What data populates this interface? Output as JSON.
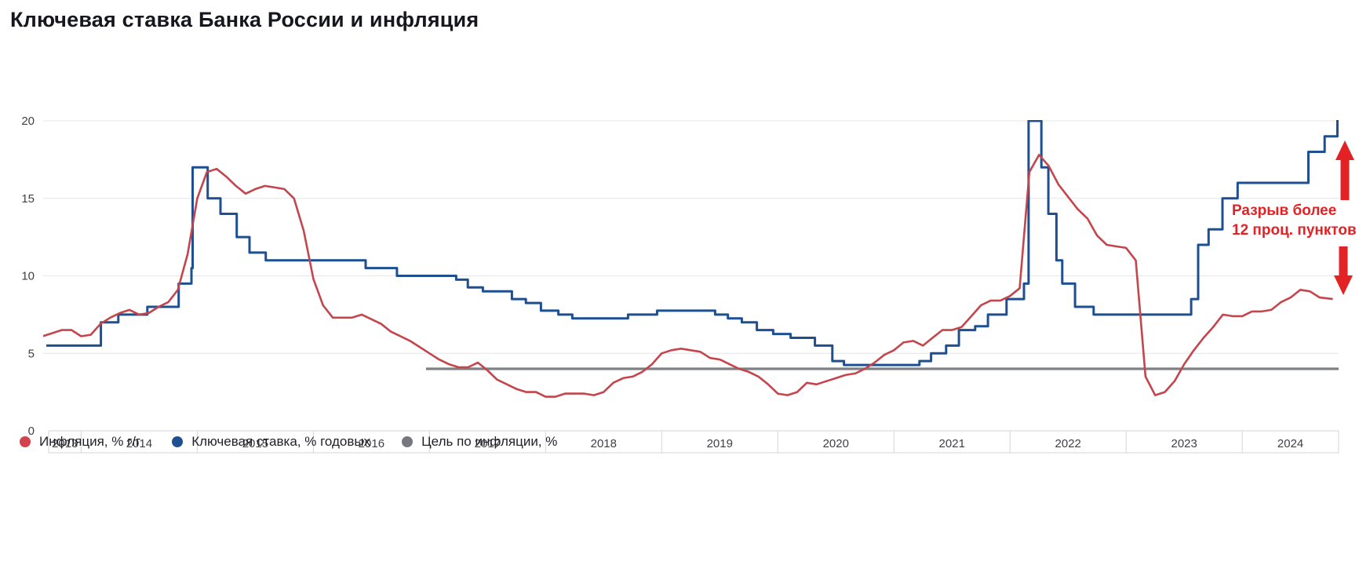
{
  "title": "Ключевая ставка Банка России и инфляция",
  "colors": {
    "inflation_line": "#c4454c",
    "key_rate_line": "#1d4f91",
    "target_line": "#7d8085",
    "annotation_red": "#e32226",
    "grid_line": "#e6e6ea",
    "axis_text": "#3f3f46",
    "title_text": "#16161e",
    "cell_border": "#d6d6da"
  },
  "annotation": {
    "line1": "Разрыв более",
    "line2": "12 проц. пунктов",
    "arrow_up": "arrow-up",
    "arrow_down": "arrow-down"
  },
  "legend": [
    {
      "label": "Инфляция, % г/г",
      "color": "#d2434b"
    },
    {
      "label": "Ключевая ставка, % годовых",
      "color": "#1d4f91"
    },
    {
      "label": "Цель по инфляции, %",
      "color": "#75787e"
    }
  ],
  "chart_data": {
    "type": "line",
    "title": "Ключевая ставка Банка России и инфляция",
    "x_axis": {
      "unit": "year",
      "range": [
        2013.72,
        2024.83
      ],
      "labels": [
        "2013",
        "2014",
        "2015",
        "2016",
        "2017",
        "2018",
        "2019",
        "2020",
        "2021",
        "2022",
        "2023",
        "2024"
      ]
    },
    "y_axis": {
      "ticks": [
        0,
        5,
        10,
        15,
        20
      ],
      "range": [
        0,
        20
      ],
      "grid": true
    },
    "series": [
      {
        "name": "Инфляция, % г/г",
        "type": "line",
        "color": "#c4454c",
        "points": [
          [
            2013.667,
            6.1
          ],
          [
            2013.75,
            6.3
          ],
          [
            2013.833,
            6.5
          ],
          [
            2013.917,
            6.5
          ],
          [
            2014.0,
            6.1
          ],
          [
            2014.083,
            6.2
          ],
          [
            2014.167,
            6.9
          ],
          [
            2014.25,
            7.3
          ],
          [
            2014.333,
            7.6
          ],
          [
            2014.417,
            7.8
          ],
          [
            2014.5,
            7.5
          ],
          [
            2014.583,
            7.6
          ],
          [
            2014.667,
            8.0
          ],
          [
            2014.75,
            8.3
          ],
          [
            2014.833,
            9.1
          ],
          [
            2014.917,
            11.4
          ],
          [
            2015.0,
            15.0
          ],
          [
            2015.083,
            16.7
          ],
          [
            2015.167,
            16.9
          ],
          [
            2015.25,
            16.4
          ],
          [
            2015.333,
            15.8
          ],
          [
            2015.417,
            15.3
          ],
          [
            2015.5,
            15.6
          ],
          [
            2015.583,
            15.8
          ],
          [
            2015.667,
            15.7
          ],
          [
            2015.75,
            15.6
          ],
          [
            2015.833,
            15.0
          ],
          [
            2015.917,
            12.9
          ],
          [
            2016.0,
            9.8
          ],
          [
            2016.083,
            8.1
          ],
          [
            2016.167,
            7.3
          ],
          [
            2016.25,
            7.3
          ],
          [
            2016.333,
            7.3
          ],
          [
            2016.417,
            7.5
          ],
          [
            2016.5,
            7.2
          ],
          [
            2016.583,
            6.9
          ],
          [
            2016.667,
            6.4
          ],
          [
            2016.75,
            6.1
          ],
          [
            2016.833,
            5.8
          ],
          [
            2016.917,
            5.4
          ],
          [
            2017.0,
            5.0
          ],
          [
            2017.083,
            4.6
          ],
          [
            2017.167,
            4.3
          ],
          [
            2017.25,
            4.1
          ],
          [
            2017.333,
            4.1
          ],
          [
            2017.417,
            4.4
          ],
          [
            2017.5,
            3.9
          ],
          [
            2017.583,
            3.3
          ],
          [
            2017.667,
            3.0
          ],
          [
            2017.75,
            2.7
          ],
          [
            2017.833,
            2.5
          ],
          [
            2017.917,
            2.5
          ],
          [
            2018.0,
            2.2
          ],
          [
            2018.083,
            2.2
          ],
          [
            2018.167,
            2.4
          ],
          [
            2018.25,
            2.4
          ],
          [
            2018.333,
            2.4
          ],
          [
            2018.417,
            2.3
          ],
          [
            2018.5,
            2.5
          ],
          [
            2018.583,
            3.1
          ],
          [
            2018.667,
            3.4
          ],
          [
            2018.75,
            3.5
          ],
          [
            2018.833,
            3.8
          ],
          [
            2018.917,
            4.3
          ],
          [
            2019.0,
            5.0
          ],
          [
            2019.083,
            5.2
          ],
          [
            2019.167,
            5.3
          ],
          [
            2019.25,
            5.2
          ],
          [
            2019.333,
            5.1
          ],
          [
            2019.417,
            4.7
          ],
          [
            2019.5,
            4.6
          ],
          [
            2019.583,
            4.3
          ],
          [
            2019.667,
            4.0
          ],
          [
            2019.75,
            3.8
          ],
          [
            2019.833,
            3.5
          ],
          [
            2019.917,
            3.0
          ],
          [
            2020.0,
            2.4
          ],
          [
            2020.083,
            2.3
          ],
          [
            2020.167,
            2.5
          ],
          [
            2020.25,
            3.1
          ],
          [
            2020.333,
            3.0
          ],
          [
            2020.417,
            3.2
          ],
          [
            2020.5,
            3.4
          ],
          [
            2020.583,
            3.6
          ],
          [
            2020.667,
            3.7
          ],
          [
            2020.75,
            4.0
          ],
          [
            2020.833,
            4.4
          ],
          [
            2020.917,
            4.9
          ],
          [
            2021.0,
            5.2
          ],
          [
            2021.083,
            5.7
          ],
          [
            2021.167,
            5.8
          ],
          [
            2021.25,
            5.5
          ],
          [
            2021.333,
            6.0
          ],
          [
            2021.417,
            6.5
          ],
          [
            2021.5,
            6.5
          ],
          [
            2021.583,
            6.7
          ],
          [
            2021.667,
            7.4
          ],
          [
            2021.75,
            8.1
          ],
          [
            2021.833,
            8.4
          ],
          [
            2021.917,
            8.4
          ],
          [
            2022.0,
            8.7
          ],
          [
            2022.083,
            9.2
          ],
          [
            2022.167,
            16.7
          ],
          [
            2022.25,
            17.8
          ],
          [
            2022.333,
            17.1
          ],
          [
            2022.417,
            15.9
          ],
          [
            2022.5,
            15.1
          ],
          [
            2022.583,
            14.3
          ],
          [
            2022.667,
            13.7
          ],
          [
            2022.75,
            12.6
          ],
          [
            2022.833,
            12.0
          ],
          [
            2022.917,
            11.9
          ],
          [
            2023.0,
            11.8
          ],
          [
            2023.083,
            11.0
          ],
          [
            2023.167,
            3.5
          ],
          [
            2023.25,
            2.3
          ],
          [
            2023.333,
            2.5
          ],
          [
            2023.417,
            3.2
          ],
          [
            2023.5,
            4.3
          ],
          [
            2023.583,
            5.2
          ],
          [
            2023.667,
            6.0
          ],
          [
            2023.75,
            6.7
          ],
          [
            2023.833,
            7.5
          ],
          [
            2023.917,
            7.4
          ],
          [
            2024.0,
            7.4
          ],
          [
            2024.083,
            7.7
          ],
          [
            2024.167,
            7.7
          ],
          [
            2024.25,
            7.8
          ],
          [
            2024.333,
            8.3
          ],
          [
            2024.417,
            8.6
          ],
          [
            2024.5,
            9.1
          ],
          [
            2024.583,
            9.0
          ],
          [
            2024.667,
            8.6
          ],
          [
            2024.78,
            8.5
          ]
        ]
      },
      {
        "name": "Ключевая ставка, % годовых",
        "type": "step",
        "color": "#1d4f91",
        "points": [
          [
            2013.7,
            5.5
          ],
          [
            2014.17,
            7.0
          ],
          [
            2014.32,
            7.5
          ],
          [
            2014.57,
            8.0
          ],
          [
            2014.84,
            9.5
          ],
          [
            2014.95,
            10.5
          ],
          [
            2014.96,
            17.0
          ],
          [
            2015.09,
            15.0
          ],
          [
            2015.2,
            14.0
          ],
          [
            2015.34,
            12.5
          ],
          [
            2015.45,
            11.5
          ],
          [
            2015.59,
            11.0
          ],
          [
            2016.45,
            10.5
          ],
          [
            2016.72,
            10.0
          ],
          [
            2017.23,
            9.75
          ],
          [
            2017.33,
            9.25
          ],
          [
            2017.46,
            9.0
          ],
          [
            2017.71,
            8.5
          ],
          [
            2017.83,
            8.25
          ],
          [
            2017.96,
            7.75
          ],
          [
            2018.11,
            7.5
          ],
          [
            2018.23,
            7.25
          ],
          [
            2018.71,
            7.5
          ],
          [
            2018.96,
            7.75
          ],
          [
            2019.46,
            7.5
          ],
          [
            2019.57,
            7.25
          ],
          [
            2019.69,
            7.0
          ],
          [
            2019.82,
            6.5
          ],
          [
            2019.96,
            6.25
          ],
          [
            2020.11,
            6.0
          ],
          [
            2020.32,
            5.5
          ],
          [
            2020.47,
            4.5
          ],
          [
            2020.57,
            4.25
          ],
          [
            2021.22,
            4.5
          ],
          [
            2021.32,
            5.0
          ],
          [
            2021.45,
            5.5
          ],
          [
            2021.56,
            6.5
          ],
          [
            2021.7,
            6.75
          ],
          [
            2021.81,
            7.5
          ],
          [
            2021.97,
            8.5
          ],
          [
            2022.12,
            9.5
          ],
          [
            2022.16,
            20.0
          ],
          [
            2022.27,
            17.0
          ],
          [
            2022.33,
            14.0
          ],
          [
            2022.4,
            11.0
          ],
          [
            2022.45,
            9.5
          ],
          [
            2022.56,
            8.0
          ],
          [
            2022.72,
            7.5
          ],
          [
            2023.56,
            8.5
          ],
          [
            2023.62,
            12.0
          ],
          [
            2023.71,
            13.0
          ],
          [
            2023.83,
            15.0
          ],
          [
            2023.96,
            16.0
          ],
          [
            2024.57,
            18.0
          ],
          [
            2024.71,
            19.0
          ],
          [
            2024.82,
            21.0
          ]
        ]
      },
      {
        "name": "Цель по инфляции, %",
        "type": "line",
        "color": "#7d8085",
        "points": [
          [
            2016.97,
            4.0
          ],
          [
            2024.83,
            4.0
          ]
        ]
      }
    ]
  }
}
